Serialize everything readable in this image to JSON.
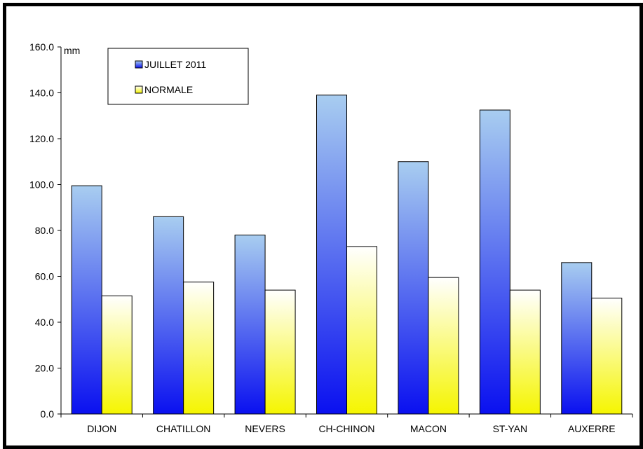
{
  "chart_data": {
    "type": "bar",
    "unit_label": "mm",
    "categories": [
      "DIJON",
      "CHATILLON",
      "NEVERS",
      "CH-CHINON",
      "MACON",
      "ST-YAN",
      "AUXERRE"
    ],
    "series": [
      {
        "name": "JUILLET 2011",
        "values": [
          99.5,
          86.0,
          78.0,
          139.0,
          110.0,
          132.5,
          66.0
        ]
      },
      {
        "name": "NORMALE",
        "values": [
          51.5,
          57.5,
          54.0,
          73.0,
          59.5,
          54.0,
          50.5
        ]
      }
    ],
    "ylim": [
      0,
      160
    ],
    "yticks": [
      "0.0",
      "20.0",
      "40.0",
      "60.0",
      "80.0",
      "100.0",
      "120.0",
      "140.0",
      "160.0"
    ],
    "legend_position": "top-left",
    "grid": false,
    "colors": {
      "juillet_top": "#a8cdf0",
      "juillet_bottom": "#0a10f0",
      "normale_top": "#ffffff",
      "normale_bottom": "#f5f500"
    }
  }
}
